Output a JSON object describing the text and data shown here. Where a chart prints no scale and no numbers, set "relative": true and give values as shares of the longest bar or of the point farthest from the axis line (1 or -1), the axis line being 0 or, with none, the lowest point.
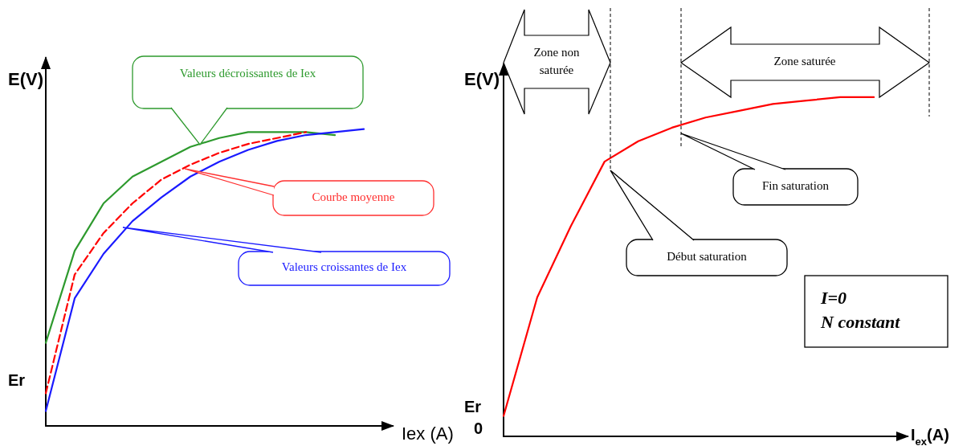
{
  "chart_data": [
    {
      "type": "line",
      "relative": true,
      "xlabel": "Iex (A)",
      "ylabel": "E(V)",
      "marker": "none",
      "categories": [
        null,
        null,
        null,
        null,
        null,
        null,
        null,
        null,
        null,
        null,
        null,
        null,
        null
      ],
      "series": [
        {
          "color": "#2e9a2e",
          "line_style": "solid",
          "values": [
            0.28,
            0.59,
            0.75,
            0.84,
            0.89,
            0.94,
            0.97,
            0.99,
            0.99,
            0.99,
            0.98,
            null,
            null
          ]
        },
        {
          "color": "#ff0000",
          "line_style": "dashed",
          "values": [
            0.11,
            0.51,
            0.65,
            0.75,
            0.83,
            0.88,
            0.92,
            0.95,
            0.97,
            0.99,
            null,
            null,
            null
          ]
        },
        {
          "color": "#1a1aff",
          "line_style": "solid",
          "values": [
            0.05,
            0.43,
            0.58,
            0.69,
            0.77,
            0.84,
            0.89,
            0.93,
            0.96,
            0.98,
            0.99,
            1.0,
            null
          ]
        }
      ],
      "annotations": [
        "Valeurs décroissantes de Iex",
        "Courbe moyenne",
        "Valeurs croissantes de Iex",
        "Er"
      ]
    },
    {
      "type": "line",
      "relative": true,
      "xlabel": "I$_{ex}$(A)",
      "ylabel": "E(V)",
      "marker": "none",
      "categories": [
        null,
        null,
        null,
        null,
        null,
        null,
        null,
        null,
        null,
        null,
        null,
        null,
        null
      ],
      "series": [
        {
          "color": "#ff0000",
          "line_style": "solid",
          "values": [
            0.06,
            0.41,
            0.62,
            0.81,
            0.87,
            0.91,
            0.94,
            0.96,
            0.98,
            0.99,
            1.0,
            1.0,
            null
          ]
        }
      ],
      "annotations": [
        "Zone non saturée",
        "Zone saturée",
        "Début saturation",
        "Fin saturation",
        "I=0\nN constant",
        "Er",
        "0"
      ]
    }
  ]
}
